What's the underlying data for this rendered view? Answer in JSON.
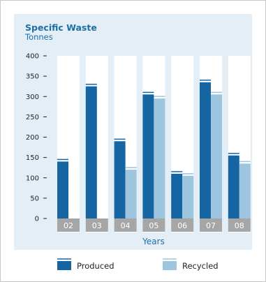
{
  "chart_data": {
    "type": "bar",
    "title": "Specific Waste",
    "subtitle": "Tonnes",
    "xlabel": "Years",
    "ylabel": "",
    "ylim": [
      0,
      400
    ],
    "yticks": [
      0,
      50,
      100,
      150,
      200,
      250,
      300,
      350,
      400
    ],
    "categories": [
      "02",
      "03",
      "04",
      "05",
      "06",
      "07",
      "08"
    ],
    "series": [
      {
        "name": "Produced",
        "values": [
          140,
          325,
          190,
          305,
          110,
          335,
          155
        ]
      },
      {
        "name": "Recycled",
        "values": [
          0,
          0,
          120,
          295,
          105,
          305,
          135
        ]
      }
    ],
    "legend_position": "bottom",
    "grid": false
  },
  "colors": {
    "produced": "#1565a3",
    "recycled": "#9ec5df",
    "category_box": "#a6a6a6",
    "column_background": "#ffffff",
    "panel": "#e3eef7",
    "accent_text": "#1f6ea6"
  }
}
